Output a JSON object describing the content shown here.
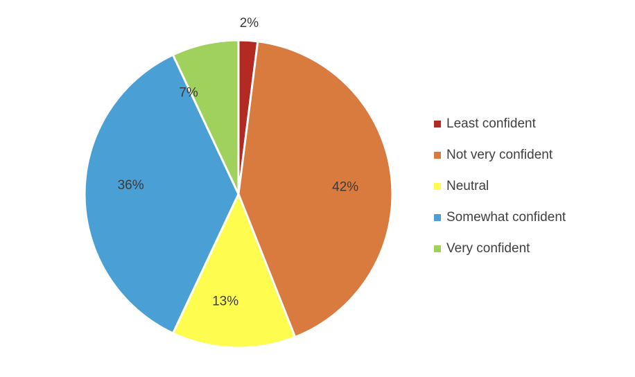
{
  "chart_data": {
    "type": "pie",
    "title": "",
    "categories": [
      "Least confident",
      "Not very confident",
      "Neutral",
      "Somewhat confident",
      "Very confident"
    ],
    "values": [
      2,
      42,
      13,
      36,
      7
    ],
    "data_labels": [
      "2%",
      "42%",
      "13%",
      "36%",
      "7%"
    ],
    "colors": [
      "#b22a22",
      "#d97b3e",
      "#fdfc4f",
      "#4a9fd4",
      "#9fd15c"
    ],
    "start": "12 o'clock",
    "direction": "clockwise",
    "legend_position": "right"
  },
  "legend": {
    "items": [
      {
        "label": "Least confident",
        "color": "#b22a22"
      },
      {
        "label": "Not very confident",
        "color": "#d97b3e"
      },
      {
        "label": "Neutral",
        "color": "#fdfc4f"
      },
      {
        "label": "Somewhat confident",
        "color": "#4a9fd4"
      },
      {
        "label": "Very confident",
        "color": "#9fd15c"
      }
    ]
  }
}
